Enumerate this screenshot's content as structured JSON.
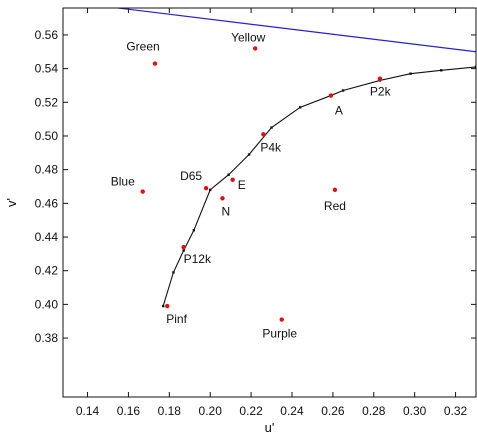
{
  "chart_data": {
    "type": "scatter",
    "title": "",
    "xlabel": "u'",
    "ylabel": "v'",
    "xlim": [
      0.128,
      0.33
    ],
    "ylim": [
      0.345,
      0.576
    ],
    "x_ticks": [
      0.14,
      0.16,
      0.18,
      0.2,
      0.22,
      0.24,
      0.26,
      0.28,
      0.3,
      0.32
    ],
    "x_tick_labels": [
      "0.14",
      "0.16",
      "0.18",
      "0.20",
      "0.22",
      "0.24",
      "0.26",
      "0.28",
      "0.30",
      "0.32"
    ],
    "y_ticks": [
      0.38,
      0.4,
      0.42,
      0.44,
      0.46,
      0.48,
      0.5,
      0.52,
      0.54,
      0.56
    ],
    "y_tick_labels": [
      "0.38",
      "0.40",
      "0.42",
      "0.44",
      "0.46",
      "0.48",
      "0.50",
      "0.52",
      "0.54",
      "0.56"
    ],
    "grid": false,
    "points": [
      {
        "label": "Green",
        "u": 0.173,
        "v": 0.543
      },
      {
        "label": "Yellow",
        "u": 0.222,
        "v": 0.552
      },
      {
        "label": "Blue",
        "u": 0.167,
        "v": 0.467
      },
      {
        "label": "Red",
        "u": 0.261,
        "v": 0.468
      },
      {
        "label": "Purple",
        "u": 0.235,
        "v": 0.391
      },
      {
        "label": "D65",
        "u": 0.198,
        "v": 0.469
      },
      {
        "label": "E",
        "u": 0.211,
        "v": 0.474
      },
      {
        "label": "N",
        "u": 0.206,
        "v": 0.463
      },
      {
        "label": "A",
        "u": 0.259,
        "v": 0.524
      },
      {
        "label": "P2k",
        "u": 0.283,
        "v": 0.534
      },
      {
        "label": "P4k",
        "u": 0.226,
        "v": 0.501
      },
      {
        "label": "P12k",
        "u": 0.187,
        "v": 0.434
      },
      {
        "label": "Pinf",
        "u": 0.179,
        "v": 0.399
      }
    ],
    "planckian_locus": {
      "u": [
        0.177,
        0.182,
        0.187,
        0.192,
        0.2,
        0.209,
        0.219,
        0.23,
        0.244,
        0.259,
        0.265,
        0.283,
        0.298,
        0.313,
        0.33
      ],
      "v": [
        0.399,
        0.419,
        0.432,
        0.444,
        0.468,
        0.477,
        0.489,
        0.505,
        0.517,
        0.524,
        0.527,
        0.533,
        0.537,
        0.539,
        0.541
      ]
    },
    "boundary_line": {
      "u": [
        0.155,
        0.33
      ],
      "v": [
        0.576,
        0.55
      ]
    },
    "colors": {
      "points": "#e01010",
      "locus": "#111111",
      "boundary": "#2222cc",
      "axes": "#111111"
    }
  }
}
